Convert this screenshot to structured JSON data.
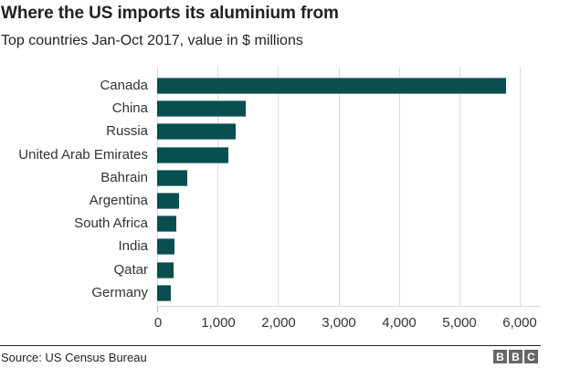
{
  "header": {
    "title": "Where the US imports its aluminium from",
    "subtitle": "Top countries Jan-Oct 2017, value in $ millions"
  },
  "footer": {
    "source": "Source: US Census Bureau",
    "logo": [
      "B",
      "B",
      "C"
    ]
  },
  "colors": {
    "bar": "#0a4f50",
    "grid": "#dcdcdc",
    "text": "#222222",
    "logo": "#666666"
  },
  "axis": {
    "ticks": [
      "0",
      "1,000",
      "2,000",
      "3,000",
      "4,000",
      "5,000",
      "6,000"
    ]
  },
  "chart_data": {
    "type": "bar",
    "orientation": "horizontal",
    "title": "Where the US imports its aluminium from",
    "subtitle": "Top countries Jan-Oct 2017, value in $ millions",
    "categories": [
      "Canada",
      "China",
      "Russia",
      "United Arab Emirates",
      "Bahrain",
      "Argentina",
      "South Africa",
      "India",
      "Qatar",
      "Germany"
    ],
    "values": [
      5770,
      1465,
      1300,
      1180,
      500,
      365,
      315,
      285,
      270,
      225
    ],
    "xlabel": "",
    "ylabel": "",
    "xlim": [
      0,
      6000
    ],
    "xticks": [
      0,
      1000,
      2000,
      3000,
      4000,
      5000,
      6000
    ],
    "grid": "vertical",
    "legend": null,
    "source": "Source: US Census Bureau"
  }
}
